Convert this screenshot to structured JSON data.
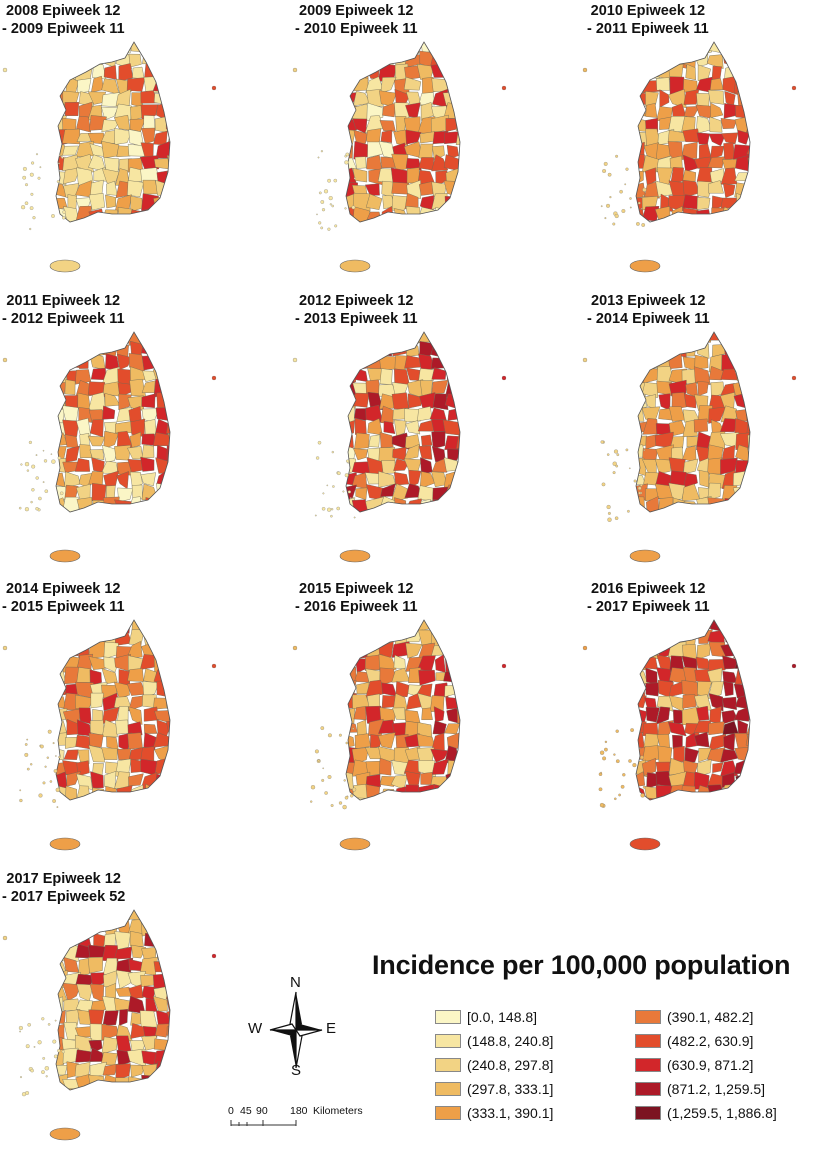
{
  "panels": [
    {
      "line1": "2008 Epiweek 12",
      "line2": "- 2009 Epiweek 11",
      "palette": [
        0,
        1,
        1,
        2,
        2,
        2,
        3,
        3,
        4,
        5,
        6
      ],
      "hot": [
        6,
        7
      ]
    },
    {
      "line1": "2009 Epiweek 12",
      "line2": "- 2010 Epiweek 11",
      "palette": [
        0,
        1,
        2,
        2,
        3,
        3,
        4,
        5,
        5,
        6,
        7
      ],
      "hot": [
        6,
        7
      ]
    },
    {
      "line1": "2010 Epiweek 12",
      "line2": "- 2011 Epiweek 11",
      "palette": [
        1,
        2,
        3,
        3,
        4,
        4,
        5,
        5,
        6,
        6,
        7
      ],
      "hot": [
        6,
        7
      ]
    },
    {
      "line1": "2011 Epiweek 12",
      "line2": "- 2012 Epiweek 11",
      "palette": [
        0,
        1,
        2,
        3,
        3,
        4,
        5,
        5,
        6,
        6,
        7
      ],
      "hot": [
        6,
        7
      ]
    },
    {
      "line1": "2012 Epiweek 12",
      "line2": "- 2013 Epiweek 11",
      "palette": [
        0,
        1,
        1,
        2,
        3,
        4,
        5,
        6,
        6,
        7,
        8
      ],
      "hot": [
        7,
        8
      ]
    },
    {
      "line1": "2013 Epiweek 12",
      "line2": "- 2014 Epiweek 11",
      "palette": [
        1,
        2,
        2,
        3,
        3,
        4,
        4,
        5,
        5,
        6,
        7
      ],
      "hot": [
        6,
        7
      ]
    },
    {
      "line1": "2014 Epiweek 12",
      "line2": "- 2015 Epiweek 11",
      "palette": [
        1,
        2,
        2,
        3,
        4,
        4,
        5,
        5,
        6,
        6,
        7
      ],
      "hot": [
        6,
        7
      ]
    },
    {
      "line1": "2015 Epiweek 12",
      "line2": "- 2016 Epiweek 11",
      "palette": [
        1,
        2,
        3,
        3,
        4,
        4,
        5,
        5,
        6,
        7,
        7
      ],
      "hot": [
        7,
        8
      ]
    },
    {
      "line1": "2016 Epiweek 12",
      "line2": "- 2017 Epiweek 11",
      "palette": [
        2,
        3,
        4,
        5,
        5,
        6,
        6,
        7,
        7,
        8,
        8
      ],
      "hot": [
        8,
        9
      ]
    },
    {
      "line1": "2017 Epiweek 12",
      "line2": "- 2017 Epiweek 52",
      "palette": [
        1,
        1,
        2,
        3,
        3,
        4,
        5,
        5,
        6,
        7,
        8
      ],
      "hot": [
        7,
        8
      ]
    }
  ],
  "legend": {
    "title": "Incidence per 100,000 population",
    "classes": [
      {
        "label": "[0.0, 148.8]",
        "color": "#fbf6c6"
      },
      {
        "label": "(148.8, 240.8]",
        "color": "#f7e6a2"
      },
      {
        "label": "(240.8, 297.8]",
        "color": "#f2d384"
      },
      {
        "label": "(297.8, 333.1]",
        "color": "#efbb62"
      },
      {
        "label": "(333.1, 390.1]",
        "color": "#ee9f48"
      },
      {
        "label": "(390.1, 482.2]",
        "color": "#e8793a"
      },
      {
        "label": "(482.2, 630.9]",
        "color": "#e24d2c"
      },
      {
        "label": "(630.9, 871.2]",
        "color": "#d2262a"
      },
      {
        "label": "(871.2, 1,259.5]",
        "color": "#ad1a28"
      },
      {
        "label": "(1,259.5, 1,886.8]",
        "color": "#7c1322"
      }
    ]
  },
  "compass": {
    "n": "N",
    "s": "S",
    "e": "E",
    "w": "W"
  },
  "scale": {
    "ticks": [
      "0",
      "45",
      "90",
      "180"
    ],
    "unit": "Kilometers"
  }
}
